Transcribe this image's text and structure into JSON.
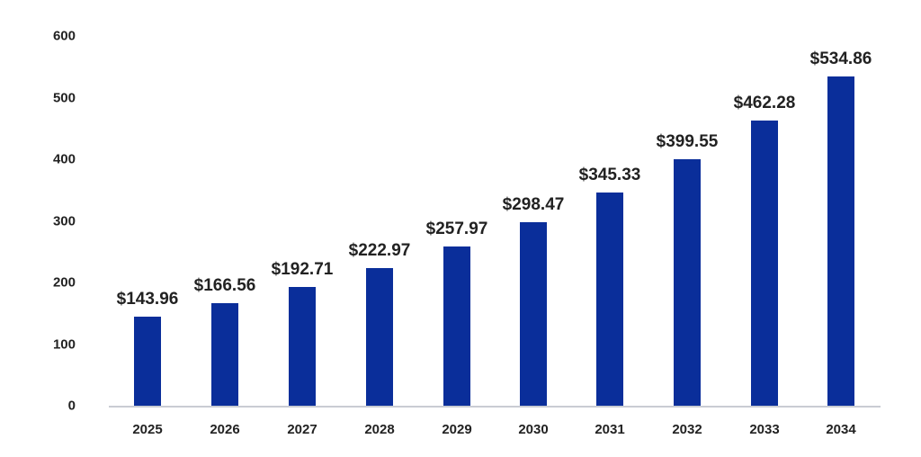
{
  "chart_data": {
    "type": "bar",
    "title": "",
    "xlabel": "",
    "ylabel": "",
    "categories": [
      "2025",
      "2026",
      "2027",
      "2028",
      "2029",
      "2030",
      "2031",
      "2032",
      "2033",
      "2034"
    ],
    "values": [
      143.96,
      166.56,
      192.71,
      222.97,
      257.97,
      298.47,
      345.33,
      399.55,
      462.28,
      534.86
    ],
    "data_labels": [
      "$143.96",
      "$166.56",
      "$192.71",
      "$222.97",
      "$257.97",
      "$298.47",
      "$345.33",
      "$399.55",
      "$462.28",
      "$534.86"
    ],
    "ylim": [
      0,
      600
    ],
    "yticks": [
      0,
      100,
      200,
      300,
      400,
      500,
      600
    ],
    "ytick_labels": [
      "0",
      "100",
      "200",
      "300",
      "400",
      "500",
      "600"
    ],
    "grid": false,
    "legend": null,
    "bar_color": "#0a2e9a"
  }
}
